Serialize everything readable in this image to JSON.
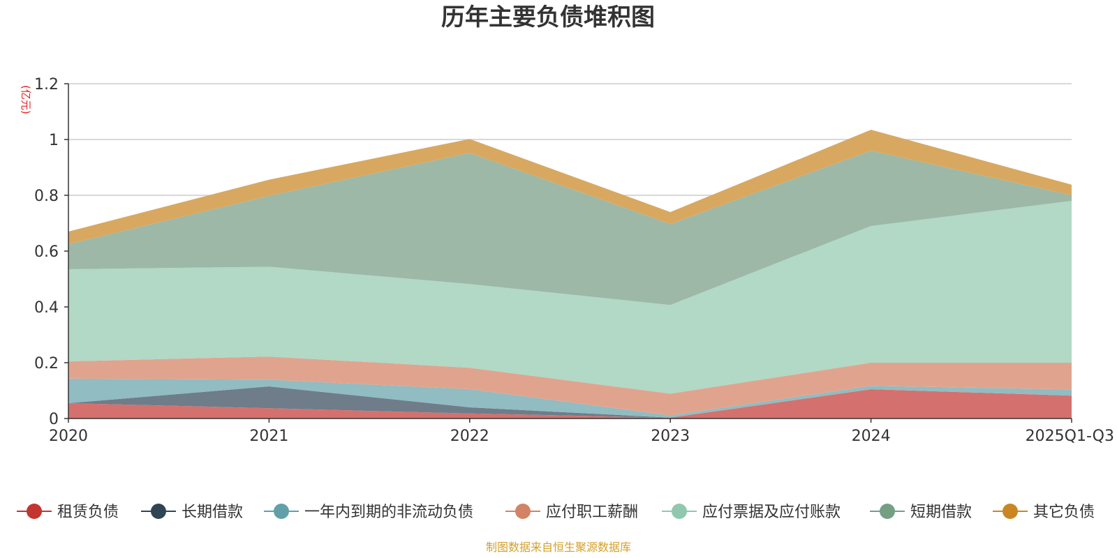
{
  "chart_data": {
    "type": "area",
    "stacked": true,
    "title": "历年主要负债堆积图",
    "unit_label": "(亿元)",
    "categories": [
      "2020",
      "2021",
      "2022",
      "2023",
      "2024",
      "2025Q1-Q3"
    ],
    "ylim": [
      0,
      1.2
    ],
    "yticks": [
      0,
      0.2,
      0.4,
      0.6,
      0.8,
      1,
      1.2
    ],
    "ytick_labels": [
      "0",
      "0.2",
      "0.4",
      "0.6",
      "0.8",
      "1",
      "1.2"
    ],
    "grid": true,
    "legend_position": "bottom",
    "series": [
      {
        "name": "租赁负债",
        "color": "#c23531",
        "fill": "#d4716e",
        "values": [
          0.055,
          0.037,
          0.018,
          0.003,
          0.105,
          0.082
        ]
      },
      {
        "name": "长期借款",
        "color": "#2f4554",
        "fill": "#6e7d89",
        "values": [
          0.0,
          0.078,
          0.022,
          0.0,
          0.0,
          0.0
        ]
      },
      {
        "name": "一年内到期的非流动负债",
        "color": "#61a0a8",
        "fill": "#90bcc2",
        "values": [
          0.088,
          0.024,
          0.065,
          0.008,
          0.012,
          0.022
        ]
      },
      {
        "name": "应付职工薪酬",
        "color": "#d48265",
        "fill": "#e0a48e",
        "values": [
          0.062,
          0.083,
          0.077,
          0.078,
          0.083,
          0.096
        ]
      },
      {
        "name": "应付票据及应付账款",
        "color": "#91c7ae",
        "fill": "#b2d8c6",
        "values": [
          0.33,
          0.322,
          0.3,
          0.318,
          0.49,
          0.58
        ]
      },
      {
        "name": "短期借款",
        "color": "#749f83",
        "fill": "#9db8a6",
        "values": [
          0.09,
          0.254,
          0.47,
          0.29,
          0.27,
          0.02
        ]
      },
      {
        "name": "其它负债",
        "color": "#ca8622",
        "fill": "#d8a861",
        "values": [
          0.045,
          0.058,
          0.05,
          0.043,
          0.075,
          0.038
        ]
      }
    ],
    "source_note": "制图数据来自恒生聚源数据库"
  }
}
